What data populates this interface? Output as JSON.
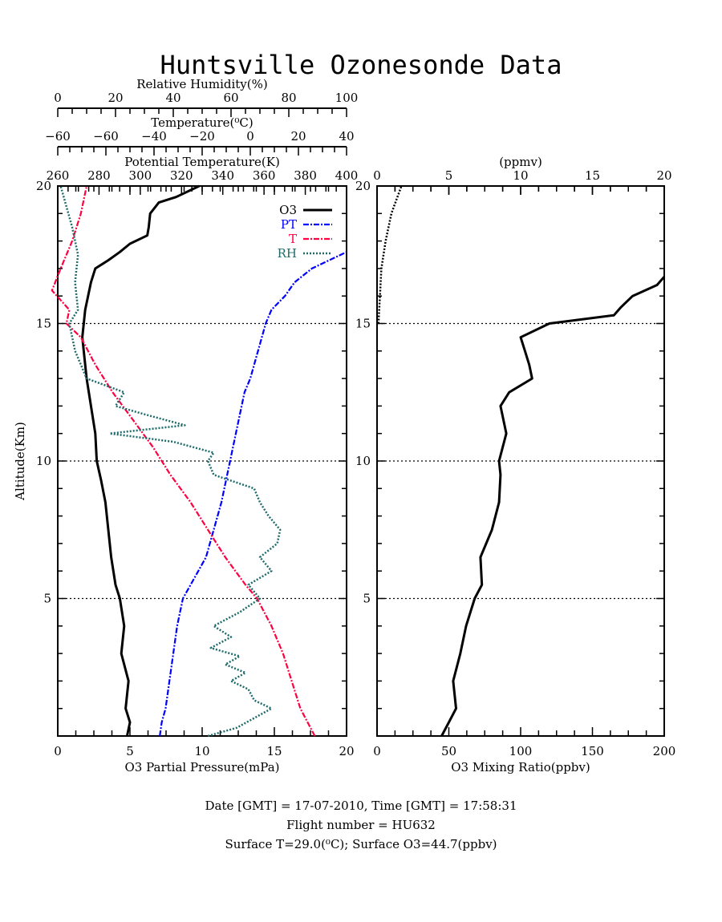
{
  "header": {
    "title": "Huntsville Ozonesonde Data"
  },
  "chart_data": [
    {
      "type": "line",
      "panel": "left",
      "ylabel": "Altitude(Km)",
      "ylim": [
        0,
        20
      ],
      "yticks": [
        "5",
        "10",
        "15",
        "20"
      ],
      "grid": "dotted at 5, 10, 15 km",
      "axes": [
        {
          "key": "rh",
          "position": "top-1",
          "label": "Relative Humidity(%)",
          "range": [
            0,
            100
          ],
          "ticks": [
            "0",
            "20",
            "40",
            "60",
            "80",
            "100"
          ]
        },
        {
          "key": "t",
          "position": "top-2",
          "label": "Temperature(⁰C)",
          "range": [
            -60,
            40
          ],
          "ticks": [
            "−60",
            "−60",
            "−40",
            "−20",
            "0",
            "20",
            "40"
          ]
        },
        {
          "key": "pt",
          "position": "top-3",
          "label": "Potential Temperature(K)",
          "range": [
            250,
            400
          ],
          "ticks": [
            "260",
            "280",
            "300",
            "320",
            "340",
            "360",
            "380",
            "400"
          ]
        },
        {
          "key": "o3",
          "position": "bottom",
          "label": "O3 Partial Pressure(mPa)",
          "range": [
            0,
            20
          ],
          "ticks": [
            "0",
            "5",
            "10",
            "15",
            "20"
          ]
        }
      ],
      "legend": {
        "placement": "top-right",
        "entries": [
          "O3",
          "PT",
          "T",
          "RH"
        ]
      },
      "series": [
        {
          "name": "O3",
          "axis": "o3",
          "color": "#000000",
          "style": "solid",
          "points": [
            [
              4.8,
              0
            ],
            [
              5.0,
              0.5
            ],
            [
              4.7,
              1
            ],
            [
              4.9,
              2
            ],
            [
              4.4,
              3
            ],
            [
              4.6,
              4
            ],
            [
              4.3,
              5
            ],
            [
              4.0,
              5.5
            ],
            [
              3.7,
              6.5
            ],
            [
              3.5,
              7.5
            ],
            [
              3.3,
              8.5
            ],
            [
              3.0,
              9.3
            ],
            [
              2.7,
              10
            ],
            [
              2.6,
              11
            ],
            [
              2.3,
              12
            ],
            [
              2.0,
              13
            ],
            [
              1.8,
              14
            ],
            [
              1.7,
              14.5
            ],
            [
              1.9,
              15.5
            ],
            [
              2.3,
              16.5
            ],
            [
              2.6,
              17
            ],
            [
              3.5,
              17.3
            ],
            [
              4.3,
              17.6
            ],
            [
              5.0,
              17.9
            ],
            [
              6.2,
              18.2
            ],
            [
              6.3,
              18.5
            ],
            [
              6.4,
              19
            ],
            [
              7.0,
              19.4
            ],
            [
              8.2,
              19.6
            ],
            [
              9.8,
              20
            ]
          ]
        },
        {
          "name": "PT",
          "axis": "pt",
          "color": "#0000ff",
          "style": "dash-dot",
          "points": [
            [
              303,
              0
            ],
            [
              304,
              0.5
            ],
            [
              306,
              1
            ],
            [
              308,
              2
            ],
            [
              310,
              3
            ],
            [
              312,
              4
            ],
            [
              315,
              5
            ],
            [
              319,
              5.5
            ],
            [
              327,
              6.5
            ],
            [
              331,
              7.5
            ],
            [
              335,
              8.5
            ],
            [
              338,
              9.5
            ],
            [
              341,
              10.5
            ],
            [
              344,
              11.5
            ],
            [
              347,
              12.5
            ],
            [
              350,
              13
            ],
            [
              352,
              13.5
            ],
            [
              354,
              14
            ],
            [
              356,
              14.5
            ],
            [
              358,
              15
            ],
            [
              361,
              15.5
            ],
            [
              368,
              16
            ],
            [
              373,
              16.5
            ],
            [
              382,
              17
            ],
            [
              391,
              17.3
            ],
            [
              400,
              17.6
            ]
          ]
        },
        {
          "name": "T",
          "axis": "t",
          "color": "#ff0040",
          "style": "dash-dot",
          "points": [
            [
              29,
              0
            ],
            [
              24,
              1
            ],
            [
              21,
              2
            ],
            [
              18,
              3
            ],
            [
              14,
              4
            ],
            [
              9,
              5
            ],
            [
              5,
              5.5
            ],
            [
              -2,
              6.5
            ],
            [
              -8,
              7.5
            ],
            [
              -14,
              8.5
            ],
            [
              -21,
              9.5
            ],
            [
              -27,
              10.5
            ],
            [
              -34,
              11.5
            ],
            [
              -41,
              12.5
            ],
            [
              -47,
              13.5
            ],
            [
              -52,
              14.5
            ],
            [
              -57,
              15
            ],
            [
              -56,
              15.5
            ],
            [
              -62,
              16.2
            ],
            [
              -59,
              17
            ],
            [
              -55,
              18
            ],
            [
              -52,
              19
            ],
            [
              -50,
              20
            ]
          ]
        },
        {
          "name": "RH",
          "axis": "rh",
          "color": "#1f6b6b",
          "style": "dotted",
          "points": [
            [
              52,
              0
            ],
            [
              62,
              0.3
            ],
            [
              74,
              1
            ],
            [
              68,
              1.3
            ],
            [
              66,
              1.7
            ],
            [
              60,
              2
            ],
            [
              65,
              2.3
            ],
            [
              58,
              2.6
            ],
            [
              63,
              2.9
            ],
            [
              53,
              3.2
            ],
            [
              60,
              3.6
            ],
            [
              54,
              4.0
            ],
            [
              63,
              4.5
            ],
            [
              70,
              5
            ],
            [
              66,
              5.5
            ],
            [
              74,
              6
            ],
            [
              70,
              6.5
            ],
            [
              76,
              7
            ],
            [
              77,
              7.5
            ],
            [
              73,
              8
            ],
            [
              70,
              8.5
            ],
            [
              68,
              9
            ],
            [
              54,
              9.5
            ],
            [
              52,
              10
            ],
            [
              54,
              10.3
            ],
            [
              40,
              10.7
            ],
            [
              18,
              11
            ],
            [
              44,
              11.3
            ],
            [
              30,
              11.7
            ],
            [
              20,
              12
            ],
            [
              23,
              12.5
            ],
            [
              10,
              13
            ],
            [
              6,
              14
            ],
            [
              4,
              15
            ],
            [
              7,
              15.5
            ],
            [
              6,
              16.5
            ],
            [
              7,
              17.5
            ],
            [
              5,
              18.5
            ],
            [
              1,
              20
            ]
          ]
        }
      ]
    },
    {
      "type": "line",
      "panel": "right",
      "ylim": [
        0,
        20
      ],
      "yticks": [
        "5",
        "10",
        "15",
        "20"
      ],
      "grid": "dotted at 5, 10, 15 km",
      "axes": [
        {
          "key": "ppmv",
          "position": "top",
          "label": "(ppmv)",
          "range": [
            0,
            20
          ],
          "ticks": [
            "0",
            "5",
            "10",
            "15",
            "20"
          ]
        },
        {
          "key": "ppbv",
          "position": "bottom",
          "label": "O3 Mixing Ratio(ppbv)",
          "range": [
            0,
            200
          ],
          "ticks": [
            "0",
            "50",
            "100",
            "150",
            "200"
          ]
        }
      ],
      "series": [
        {
          "axis": "ppbv",
          "color": "#000000",
          "style": "solid",
          "points": [
            [
              45,
              0
            ],
            [
              50,
              0.5
            ],
            [
              55,
              1
            ],
            [
              53,
              2
            ],
            [
              58,
              3
            ],
            [
              62,
              4
            ],
            [
              68,
              5
            ],
            [
              73,
              5.5
            ],
            [
              72,
              6.5
            ],
            [
              80,
              7.5
            ],
            [
              85,
              8.5
            ],
            [
              86,
              9.5
            ],
            [
              85,
              10
            ],
            [
              90,
              11
            ],
            [
              86,
              12
            ],
            [
              92,
              12.5
            ],
            [
              108,
              13
            ],
            [
              106,
              13.5
            ],
            [
              103,
              14
            ],
            [
              100,
              14.5
            ],
            [
              120,
              15
            ],
            [
              165,
              15.3
            ],
            [
              170,
              15.6
            ],
            [
              178,
              16
            ],
            [
              195,
              16.4
            ],
            [
              200,
              16.7
            ]
          ]
        },
        {
          "axis": "ppmv",
          "color": "#000000",
          "style": "dotted",
          "points": [
            [
              0.1,
              15
            ],
            [
              0.2,
              16
            ],
            [
              0.3,
              17
            ],
            [
              0.6,
              18
            ],
            [
              1.0,
              19
            ],
            [
              1.7,
              20
            ]
          ]
        }
      ]
    }
  ],
  "footer": {
    "line1": "Date [GMT] = 17-07-2010,  Time [GMT] = 17:58:31",
    "line2": "Flight number = HU632",
    "line3": "Surface T=29.0(⁰C); Surface O3=44.7(ppbv)"
  }
}
